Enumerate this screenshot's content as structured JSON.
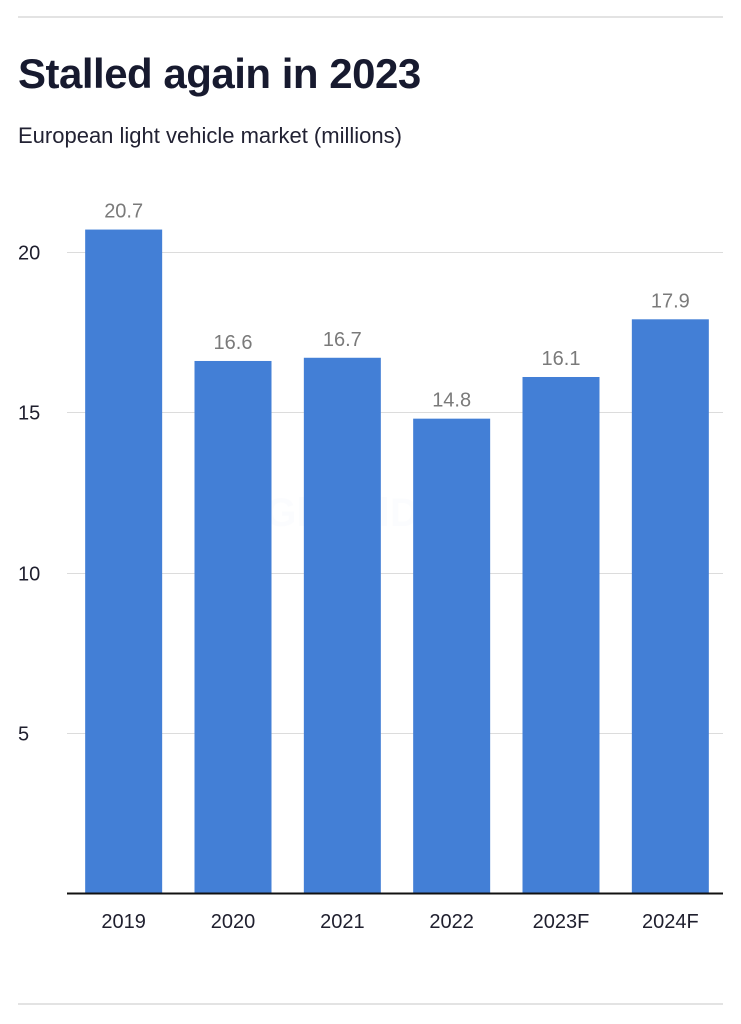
{
  "header": {
    "title": "Stalled again in 2023",
    "subtitle": "European light vehicle market (millions)"
  },
  "watermark": "GlobalData",
  "colors": {
    "bar": "#437fd6",
    "grid": "#dcdcdc",
    "axis": "#111111",
    "data_label": "#7a7a7a"
  },
  "chart_data": {
    "type": "bar",
    "title": "Stalled again in 2023",
    "subtitle": "European light vehicle market (millions)",
    "xlabel": "",
    "ylabel": "",
    "categories": [
      "2019",
      "2020",
      "2021",
      "2022",
      "2023F",
      "2024F"
    ],
    "values": [
      20.7,
      16.6,
      16.7,
      14.8,
      16.1,
      17.9
    ],
    "value_labels": [
      "20.7",
      "16.6",
      "16.7",
      "14.8",
      "16.1",
      "17.9"
    ],
    "ylim": [
      0,
      20
    ],
    "yticks": [
      5,
      10,
      15,
      20
    ],
    "ytick_labels": [
      "5",
      "10",
      "15",
      "20"
    ],
    "grid": true,
    "legend": "none"
  }
}
